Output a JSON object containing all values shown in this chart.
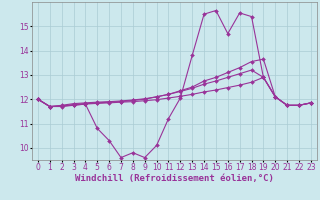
{
  "title": "",
  "xlabel": "Windchill (Refroidissement éolien,°C)",
  "bg_color": "#cce8ed",
  "grid_color": "#aaccd4",
  "line_color": "#993399",
  "x": [
    0,
    1,
    2,
    3,
    4,
    5,
    6,
    7,
    8,
    9,
    10,
    11,
    12,
    13,
    14,
    15,
    16,
    17,
    18,
    19,
    20,
    21,
    22,
    23
  ],
  "line1": [
    12.0,
    11.7,
    11.7,
    11.75,
    11.8,
    10.8,
    10.3,
    9.6,
    9.8,
    9.6,
    10.1,
    11.2,
    12.05,
    13.8,
    15.5,
    15.65,
    14.7,
    15.55,
    15.4,
    12.9,
    12.1,
    11.75,
    11.75,
    11.85
  ],
  "line2": [
    12.0,
    11.7,
    11.75,
    11.82,
    11.85,
    11.88,
    11.9,
    11.93,
    11.97,
    12.02,
    12.1,
    12.2,
    12.35,
    12.5,
    12.75,
    12.9,
    13.1,
    13.3,
    13.55,
    13.65,
    12.1,
    11.75,
    11.75,
    11.85
  ],
  "line3": [
    12.0,
    11.7,
    11.72,
    11.78,
    11.82,
    11.85,
    11.88,
    11.9,
    11.95,
    12.0,
    12.1,
    12.2,
    12.32,
    12.45,
    12.62,
    12.75,
    12.9,
    13.05,
    13.2,
    12.9,
    12.1,
    11.75,
    11.75,
    11.85
  ],
  "line4": [
    12.0,
    11.7,
    11.72,
    11.76,
    11.8,
    11.83,
    11.85,
    11.88,
    11.9,
    11.94,
    11.98,
    12.05,
    12.12,
    12.2,
    12.3,
    12.38,
    12.48,
    12.58,
    12.7,
    12.9,
    12.1,
    11.75,
    11.75,
    11.85
  ],
  "ylim": [
    9.5,
    16.0
  ],
  "yticks": [
    10,
    11,
    12,
    13,
    14,
    15
  ],
  "xticks": [
    0,
    1,
    2,
    3,
    4,
    5,
    6,
    7,
    8,
    9,
    10,
    11,
    12,
    13,
    14,
    15,
    16,
    17,
    18,
    19,
    20,
    21,
    22,
    23
  ],
  "marker": "D",
  "markersize": 2.0,
  "linewidth": 0.8,
  "xlabel_fontsize": 6.5,
  "tick_fontsize": 5.5
}
